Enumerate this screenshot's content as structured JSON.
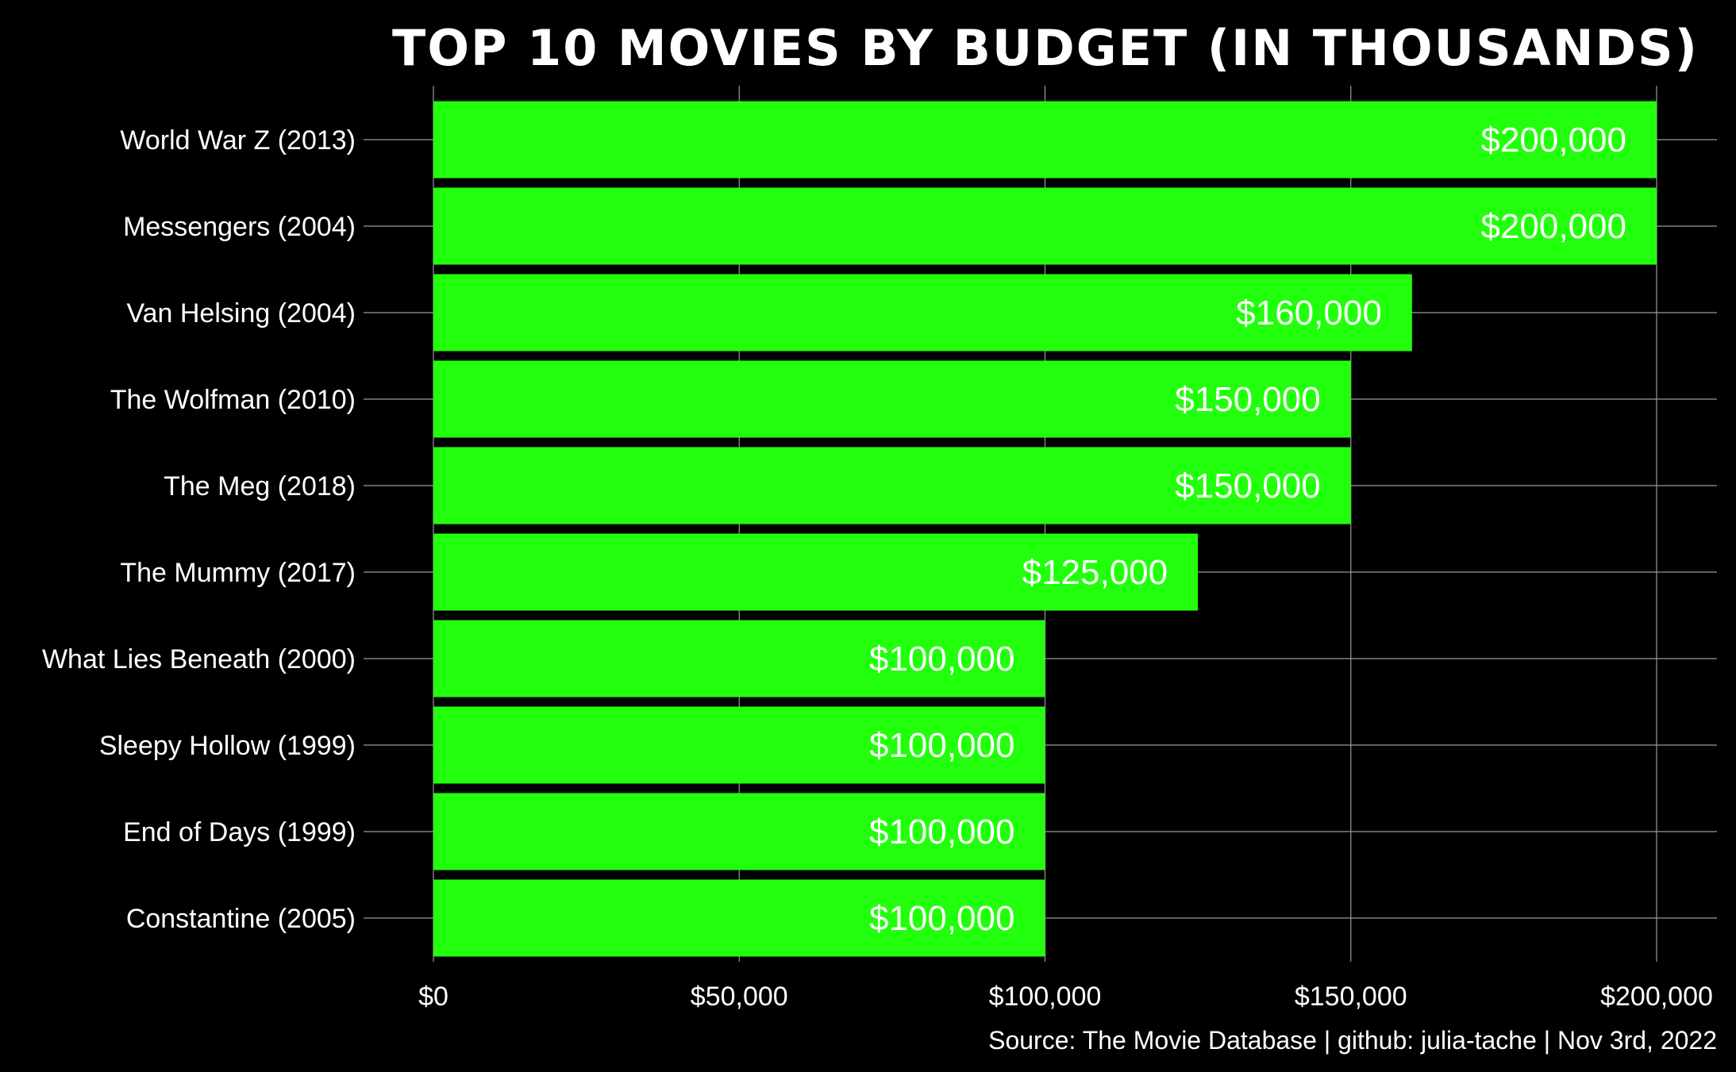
{
  "chart_data": {
    "type": "bar",
    "orientation": "horizontal",
    "title": "TOP 10 MOVIES BY BUDGET (IN THOUSANDS)",
    "caption": "Source: The Movie Database | github: julia-tache | Nov 3rd, 2022",
    "xlabel": "",
    "ylabel": "",
    "categories": [
      "World War Z (2013)",
      "Messengers (2004)",
      "Van Helsing (2004)",
      "The Wolfman (2010)",
      "The Meg (2018)",
      "The Mummy (2017)",
      "What Lies Beneath (2000)",
      "Sleepy Hollow (1999)",
      "End of Days (1999)",
      "Constantine (2005)"
    ],
    "values": [
      200000,
      200000,
      160000,
      150000,
      150000,
      125000,
      100000,
      100000,
      100000,
      100000
    ],
    "value_labels": [
      "$200,000",
      "$200,000",
      "$160,000",
      "$150,000",
      "$150,000",
      "$125,000",
      "$100,000",
      "$100,000",
      "$100,000",
      "$100,000"
    ],
    "xlim": [
      0,
      200000
    ],
    "xticks": [
      0,
      50000,
      100000,
      150000,
      200000
    ],
    "xtick_labels": [
      "$0",
      "$50,000",
      "$100,000",
      "$150,000",
      "$200,000"
    ],
    "grid": true,
    "legend": "none",
    "colors": {
      "background": "#000000",
      "bar": "#22ff0c",
      "grid": "#9a9a9a",
      "text": "#ffffff"
    }
  }
}
